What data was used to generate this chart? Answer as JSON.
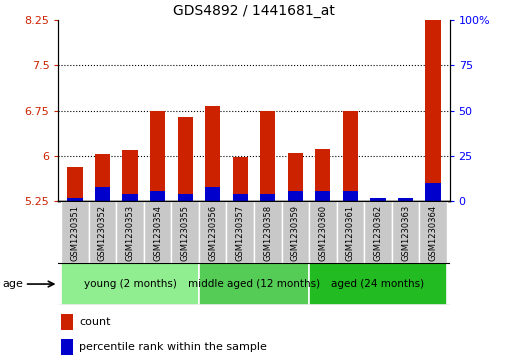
{
  "title": "GDS4892 / 1441681_at",
  "samples": [
    "GSM1230351",
    "GSM1230352",
    "GSM1230353",
    "GSM1230354",
    "GSM1230355",
    "GSM1230356",
    "GSM1230357",
    "GSM1230358",
    "GSM1230359",
    "GSM1230360",
    "GSM1230361",
    "GSM1230362",
    "GSM1230363",
    "GSM1230364"
  ],
  "count_values": [
    5.82,
    6.04,
    6.1,
    6.75,
    6.65,
    6.82,
    5.98,
    6.75,
    6.05,
    6.12,
    6.75,
    5.3,
    5.28,
    8.35
  ],
  "percentile_values": [
    2,
    8,
    4,
    6,
    4,
    8,
    4,
    4,
    6,
    6,
    6,
    2,
    2,
    10
  ],
  "ylim_left": [
    5.25,
    8.25
  ],
  "ylim_right": [
    0,
    100
  ],
  "yticks_left": [
    5.25,
    6.0,
    6.75,
    7.5,
    8.25
  ],
  "ytick_labels_left": [
    "5.25",
    "6",
    "6.75",
    "7.5",
    "8.25"
  ],
  "yticks_right": [
    0,
    25,
    50,
    75,
    100
  ],
  "ytick_labels_right": [
    "0",
    "25",
    "50",
    "75",
    "100%"
  ],
  "groups": [
    {
      "label": "young (2 months)",
      "start": 0,
      "end": 5,
      "color": "#90EE90"
    },
    {
      "label": "middle aged (12 months)",
      "start": 5,
      "end": 9,
      "color": "#55CC55"
    },
    {
      "label": "aged (24 months)",
      "start": 9,
      "end": 14,
      "color": "#22BB22"
    }
  ],
  "bar_width": 0.55,
  "count_color": "#CC2200",
  "percentile_color": "#0000CC",
  "baseline": 5.25,
  "grid_yticks": [
    6.0,
    6.75,
    7.5
  ],
  "gray_box_color": "#C8C8C8",
  "plot_bg": "white",
  "legend_count_label": "count",
  "legend_pct_label": "percentile rank within the sample",
  "age_label": "age"
}
